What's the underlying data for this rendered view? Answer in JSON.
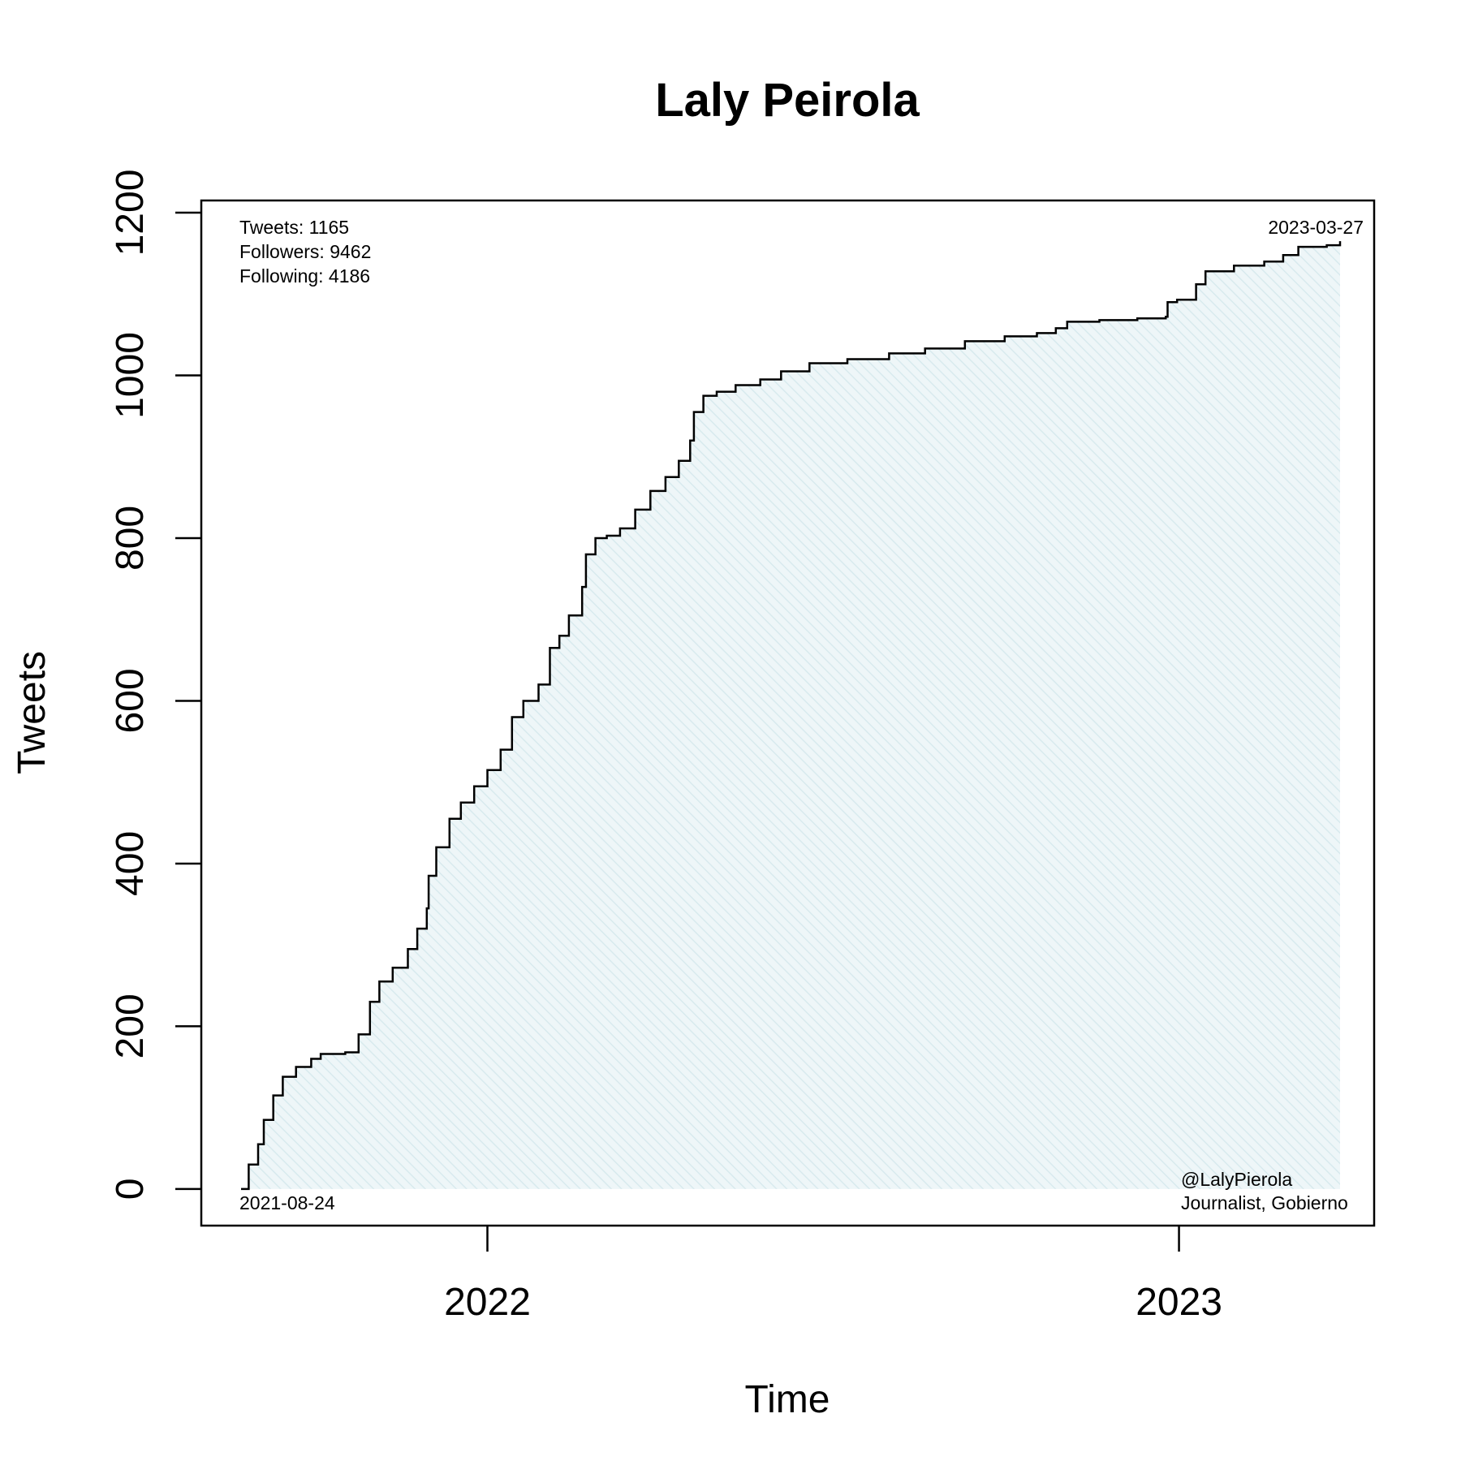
{
  "chart_data": {
    "type": "area",
    "title": "Laly Peirola",
    "xlabel": "Time",
    "ylabel": "Tweets",
    "x_range": [
      "2021-08-03",
      "2023-04-14"
    ],
    "ylim": [
      -45,
      1215
    ],
    "y_ticks": [
      0,
      200,
      400,
      600,
      800,
      1000,
      1200
    ],
    "x_ticks": [
      {
        "label": "2022",
        "date": "2022-01-01"
      },
      {
        "label": "2023",
        "date": "2023-01-01"
      }
    ],
    "grid": false,
    "fill_color": "#e4f1f4",
    "line_color": "#000000",
    "series": [
      {
        "points": [
          [
            "2021-08-24",
            0
          ],
          [
            "2021-08-28",
            30
          ],
          [
            "2021-09-02",
            55
          ],
          [
            "2021-09-05",
            85
          ],
          [
            "2021-09-10",
            115
          ],
          [
            "2021-09-15",
            138
          ],
          [
            "2021-09-22",
            150
          ],
          [
            "2021-09-30",
            160
          ],
          [
            "2021-10-05",
            166
          ],
          [
            "2021-10-12",
            166
          ],
          [
            "2021-10-18",
            168
          ],
          [
            "2021-10-25",
            190
          ],
          [
            "2021-10-31",
            230
          ],
          [
            "2021-11-05",
            255
          ],
          [
            "2021-11-12",
            272
          ],
          [
            "2021-11-20",
            295
          ],
          [
            "2021-11-25",
            320
          ],
          [
            "2021-11-30",
            345
          ],
          [
            "2021-12-01",
            385
          ],
          [
            "2021-12-05",
            420
          ],
          [
            "2021-12-12",
            455
          ],
          [
            "2021-12-18",
            475
          ],
          [
            "2021-12-25",
            495
          ],
          [
            "2022-01-01",
            515
          ],
          [
            "2022-01-08",
            540
          ],
          [
            "2022-01-14",
            580
          ],
          [
            "2022-01-20",
            600
          ],
          [
            "2022-01-28",
            620
          ],
          [
            "2022-02-03",
            665
          ],
          [
            "2022-02-08",
            680
          ],
          [
            "2022-02-13",
            705
          ],
          [
            "2022-02-20",
            740
          ],
          [
            "2022-02-22",
            780
          ],
          [
            "2022-02-27",
            800
          ],
          [
            "2022-03-05",
            803
          ],
          [
            "2022-03-12",
            812
          ],
          [
            "2022-03-20",
            835
          ],
          [
            "2022-03-28",
            858
          ],
          [
            "2022-04-05",
            875
          ],
          [
            "2022-04-12",
            895
          ],
          [
            "2022-04-18",
            920
          ],
          [
            "2022-04-20",
            955
          ],
          [
            "2022-04-25",
            975
          ],
          [
            "2022-05-02",
            980
          ],
          [
            "2022-05-12",
            988
          ],
          [
            "2022-05-25",
            995
          ],
          [
            "2022-06-05",
            1005
          ],
          [
            "2022-06-20",
            1015
          ],
          [
            "2022-07-10",
            1020
          ],
          [
            "2022-08-01",
            1027
          ],
          [
            "2022-08-20",
            1033
          ],
          [
            "2022-09-10",
            1042
          ],
          [
            "2022-10-01",
            1048
          ],
          [
            "2022-10-18",
            1052
          ],
          [
            "2022-10-28",
            1058
          ],
          [
            "2022-11-03",
            1066
          ],
          [
            "2022-11-20",
            1068
          ],
          [
            "2022-12-10",
            1070
          ],
          [
            "2022-12-25",
            1072
          ],
          [
            "2022-12-26",
            1090
          ],
          [
            "2022-12-31",
            1093
          ],
          [
            "2023-01-08",
            1093
          ],
          [
            "2023-01-10",
            1112
          ],
          [
            "2023-01-15",
            1128
          ],
          [
            "2023-01-30",
            1135
          ],
          [
            "2023-02-15",
            1140
          ],
          [
            "2023-02-25",
            1148
          ],
          [
            "2023-03-05",
            1158
          ],
          [
            "2023-03-20",
            1160
          ],
          [
            "2023-03-27",
            1165
          ]
        ]
      }
    ],
    "annotations": {
      "tweets": "Tweets: 1165",
      "followers": "Followers: 9462",
      "following": "Following: 4186",
      "start_date": "2021-08-24",
      "end_date": "2023-03-27",
      "handle": "@LalyPierola",
      "description": "Journalist, Gobierno"
    }
  }
}
